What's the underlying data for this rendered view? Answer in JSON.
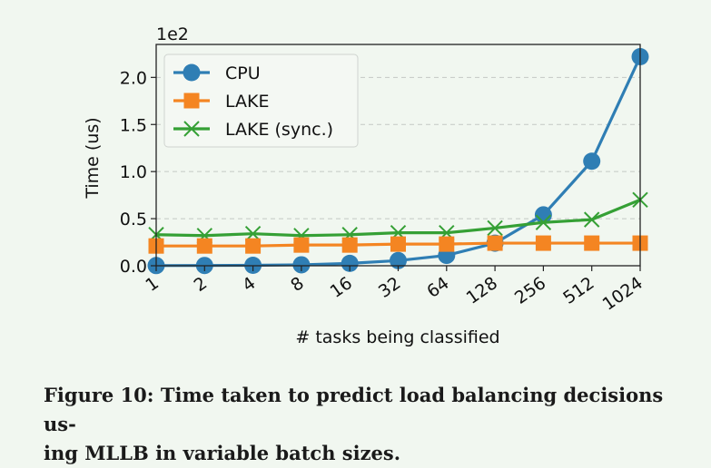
{
  "chart_data": {
    "type": "line",
    "categories": [
      "1",
      "2",
      "4",
      "8",
      "16",
      "32",
      "64",
      "128",
      "256",
      "512",
      "1024"
    ],
    "series": [
      {
        "name": "CPU",
        "color": "#2f7eb4",
        "marker": "circle",
        "values": [
          0.2,
          0.3,
          0.5,
          1.0,
          2.5,
          5.5,
          11,
          24,
          54,
          111,
          222
        ]
      },
      {
        "name": "LAKE",
        "color": "#f48522",
        "marker": "square",
        "values": [
          21,
          21,
          21,
          22,
          22,
          23,
          23,
          24,
          24,
          24,
          24
        ]
      },
      {
        "name": "LAKE (sync.)",
        "color": "#35a035",
        "marker": "x",
        "values": [
          33,
          32,
          34,
          32,
          33,
          35,
          35,
          40,
          46,
          49,
          70
        ]
      }
    ],
    "xlabel": "# tasks being classified",
    "ylabel": "Time (us)",
    "scale_label": "1e2",
    "yscale_factor": 100,
    "ylim": [
      0,
      235
    ],
    "yticks": [
      0,
      50,
      100,
      150,
      200
    ],
    "ytick_labels": [
      "0.0",
      "0.5",
      "1.0",
      "1.5",
      "2.0"
    ],
    "grid": "horizontal dashed",
    "legend_position": "top-left"
  },
  "caption": {
    "line1": "Figure 10: Time taken to predict load balancing decisions us-",
    "line2": "ing MLLB in variable batch sizes."
  }
}
